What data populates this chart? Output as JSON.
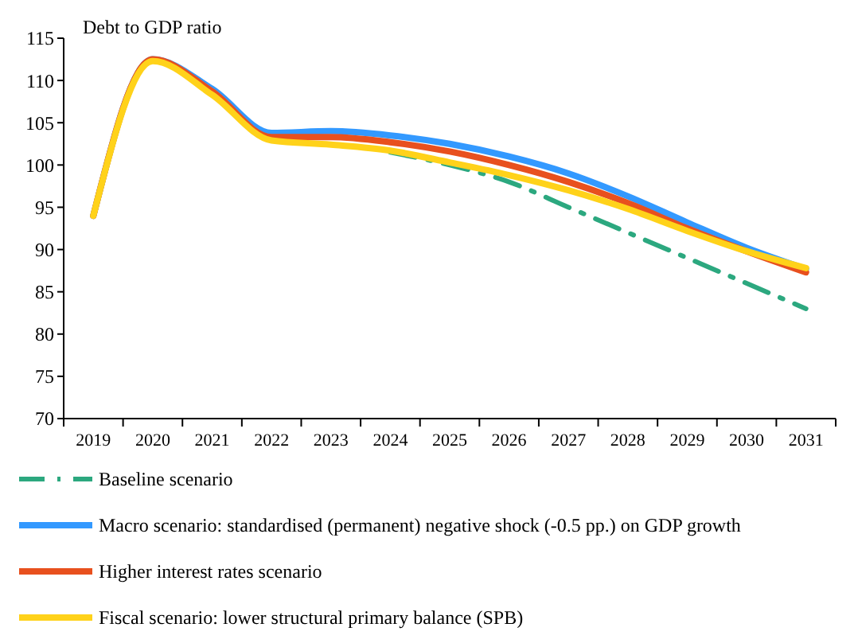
{
  "chart_data": {
    "type": "line",
    "ylabel": "Debt to GDP ratio",
    "categories": [
      "2019",
      "2020",
      "2021",
      "2022",
      "2023",
      "2024",
      "2025",
      "2026",
      "2027",
      "2028",
      "2029",
      "2030",
      "2031"
    ],
    "series": [
      {
        "name": "Baseline scenario",
        "color": "#2ca87f",
        "line_style": "dashdot",
        "values": [
          null,
          null,
          null,
          null,
          null,
          101.5,
          100,
          98,
          95,
          92,
          89,
          86,
          83
        ]
      },
      {
        "name": "Macro scenario: standardised (permanent) negative shock (-0.5 pp.) on GDP growth",
        "color": "#3399ff",
        "line_style": "solid",
        "values": [
          94,
          112.5,
          109,
          103.8,
          104,
          103.5,
          102.5,
          101,
          99,
          96.3,
          93.2,
          90.2,
          87.7
        ]
      },
      {
        "name": "Higher interest rates scenario",
        "color": "#e8501e",
        "line_style": "solid",
        "values": [
          94,
          112.5,
          108.7,
          103.3,
          103.3,
          102.7,
          101.6,
          100,
          98,
          95.5,
          92.5,
          89.8,
          87.3
        ]
      },
      {
        "name": "Fiscal scenario: lower structural primary balance (SPB)",
        "color": "#ffd21a",
        "line_style": "solid",
        "values": [
          94,
          112.3,
          108.3,
          102.9,
          102.4,
          101.7,
          100.3,
          98.8,
          97,
          94.8,
          92.2,
          89.8,
          87.8
        ]
      }
    ],
    "ylim": [
      70,
      115
    ],
    "yticks": [
      70,
      75,
      80,
      85,
      90,
      95,
      100,
      105,
      110,
      115
    ],
    "grid": false,
    "legend": "bottom"
  }
}
